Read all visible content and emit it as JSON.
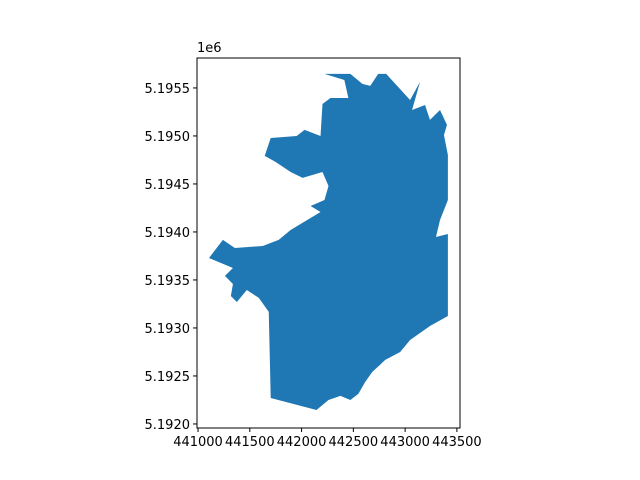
{
  "chart_data": {
    "type": "map",
    "offset_label": "1e6",
    "color": "#1f77b4",
    "x": [
      442221,
      442471,
      442587,
      442663,
      442740,
      442817,
      443048,
      443144,
      443067,
      443192,
      443240,
      443337,
      443404,
      443375,
      443413,
      443413,
      443337,
      443298,
      443413,
      443413,
      443240,
      443048,
      442952,
      442808,
      442683,
      442615,
      442548,
      442471,
      442375,
      442260,
      442144,
      441702,
      441683,
      441587,
      441471,
      441375,
      441317,
      441337,
      441260,
      441337,
      441106,
      441240,
      441356,
      441625,
      441779,
      441894,
      442183,
      442087,
      442221,
      442260,
      442202,
      442010,
      441894,
      441750,
      441644,
      441702,
      441952,
      442029,
      442183,
      442202,
      442279,
      442452,
      442413
    ],
    "y": [
      5195646,
      5195646,
      5195542,
      5195521,
      5195646,
      5195646,
      5195375,
      5195563,
      5195271,
      5195323,
      5195167,
      5195271,
      5195115,
      5195010,
      5194802,
      5194333,
      5194125,
      5193948,
      5193979,
      5193125,
      5193021,
      5192875,
      5192750,
      5192667,
      5192542,
      5192438,
      5192313,
      5192250,
      5192292,
      5192250,
      5192146,
      5192271,
      5193167,
      5193313,
      5193396,
      5193271,
      5193333,
      5193458,
      5193542,
      5193625,
      5193729,
      5193917,
      5193833,
      5193854,
      5193917,
      5194021,
      5194208,
      5194271,
      5194333,
      5194479,
      5194625,
      5194563,
      5194625,
      5194729,
      5194792,
      5194979,
      5195000,
      5195063,
      5195000,
      5195333,
      5195396,
      5195396,
      5195583
    ],
    "xlim": [
      440990,
      443530
    ],
    "ylim": [
      5191958,
      5195812
    ],
    "xticks": [
      441000,
      441500,
      442000,
      442500,
      443000,
      443500
    ],
    "yticks": [
      {
        "value": 5192000,
        "label": "5.1920"
      },
      {
        "value": 5192500,
        "label": "5.1925"
      },
      {
        "value": 5193000,
        "label": "5.1930"
      },
      {
        "value": 5193500,
        "label": "5.1935"
      },
      {
        "value": 5194000,
        "label": "5.1940"
      },
      {
        "value": 5194500,
        "label": "5.1945"
      },
      {
        "value": 5195000,
        "label": "5.1950"
      },
      {
        "value": 5195500,
        "label": "5.1955"
      }
    ]
  }
}
